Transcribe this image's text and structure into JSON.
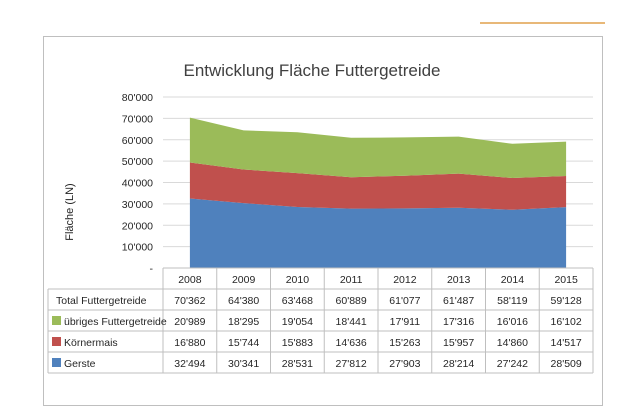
{
  "chart_data": {
    "type": "area",
    "stacked": true,
    "title": "Entwicklung Fläche Futtergetreide",
    "ylabel": "Fläche (LN)",
    "xlabel": "",
    "ylim": [
      0,
      80000
    ],
    "yticks": [
      "-",
      "10'000",
      "20'000",
      "30'000",
      "40'000",
      "50'000",
      "60'000",
      "70'000",
      "80'000"
    ],
    "grid": true,
    "legend": "data-table",
    "categories": [
      "2008",
      "2009",
      "2010",
      "2011",
      "2012",
      "2013",
      "2014",
      "2015"
    ],
    "series": [
      {
        "name": "Gerste",
        "color": "#4f81bd",
        "values": [
          32494,
          30341,
          28531,
          27812,
          27903,
          28214,
          27242,
          28509
        ],
        "labels": [
          "32'494",
          "30'341",
          "28'531",
          "27'812",
          "27'903",
          "28'214",
          "27'242",
          "28'509"
        ]
      },
      {
        "name": "Körnermais",
        "color": "#c0504d",
        "values": [
          16880,
          15744,
          15883,
          14636,
          15263,
          15957,
          14860,
          14517
        ],
        "labels": [
          "16'880",
          "15'744",
          "15'883",
          "14'636",
          "15'263",
          "15'957",
          "14'860",
          "14'517"
        ]
      },
      {
        "name": "übriges Futtergetreide",
        "color": "#9bbb59",
        "values": [
          20989,
          18295,
          19054,
          18441,
          17911,
          17316,
          16016,
          16102
        ],
        "labels": [
          "20'989",
          "18'295",
          "19'054",
          "18'441",
          "17'911",
          "17'316",
          "16'016",
          "16'102"
        ]
      }
    ],
    "total": {
      "name": "Total Futtergetreide",
      "values": [
        70362,
        64380,
        63468,
        60889,
        61077,
        61487,
        58119,
        59128
      ],
      "labels": [
        "70'362",
        "64'380",
        "63'468",
        "60'889",
        "61'077",
        "61'487",
        "58'119",
        "59'128"
      ]
    }
  }
}
